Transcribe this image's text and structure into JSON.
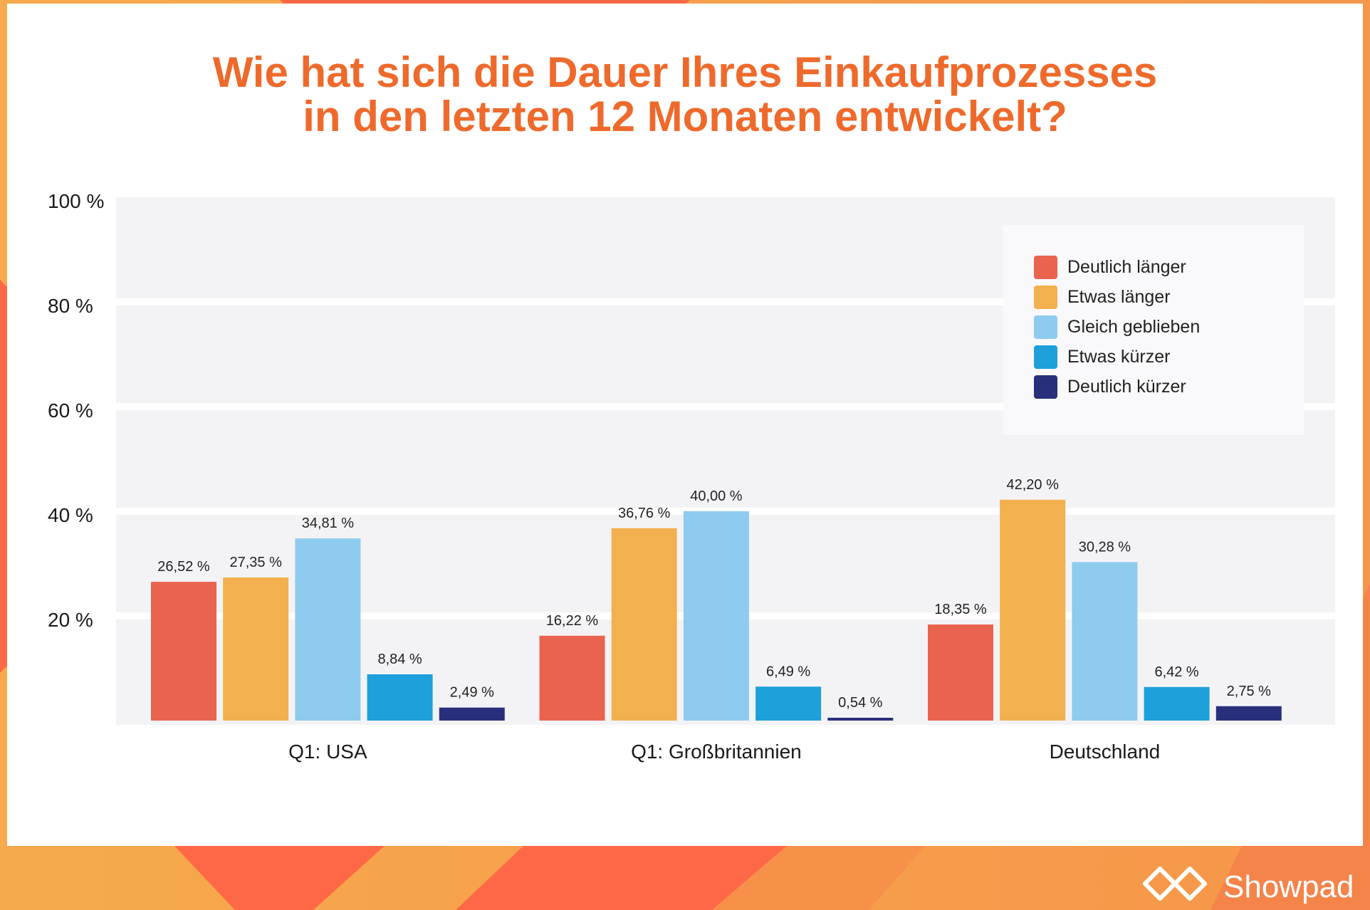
{
  "chart_data": {
    "type": "bar",
    "title": [
      "Wie hat sich die Dauer Ihres Einkaufprozesses",
      "in den letzten 12 Monaten entwickelt?"
    ],
    "categories": [
      "Q1: USA",
      "Q1: Großbritannien",
      "Deutschland"
    ],
    "series": [
      {
        "name": "Deutlich länger",
        "color": "#E9634E",
        "values": [
          26.52,
          16.22,
          18.35
        ],
        "labels": [
          "26,52 %",
          "16,22 %",
          "18,35 %"
        ]
      },
      {
        "name": "Etwas länger",
        "color": "#F2B04E",
        "values": [
          27.35,
          36.76,
          42.2
        ],
        "labels": [
          "27,35 %",
          "36,76 %",
          "42,20 %"
        ]
      },
      {
        "name": "Gleich geblieben",
        "color": "#8FCBEE",
        "values": [
          34.81,
          40.0,
          30.28
        ],
        "labels": [
          "34,81 %",
          "40,00 %",
          "30,28 %"
        ]
      },
      {
        "name": "Etwas kürzer",
        "color": "#1EA0DB",
        "values": [
          8.84,
          6.49,
          6.42
        ],
        "labels": [
          "8,84 %",
          "6,49 %",
          "6,42 %"
        ]
      },
      {
        "name": "Deutlich kürzer",
        "color": "#2A2F7B",
        "values": [
          2.49,
          0.54,
          2.75
        ],
        "labels": [
          "2,49 %",
          "0,54 %",
          "2,75 %"
        ]
      }
    ],
    "y_ticks": [
      {
        "value": 100,
        "label": "100 %"
      },
      {
        "value": 80,
        "label": "80 %"
      },
      {
        "value": 60,
        "label": "60 %"
      },
      {
        "value": 40,
        "label": "40 %"
      },
      {
        "value": 20,
        "label": "20 %"
      }
    ],
    "ylim": [
      0,
      100
    ],
    "grid": true,
    "legend": "top-right"
  },
  "theme": {
    "title_color": "#EE6A2C",
    "plot_background": "#F3F3F6"
  },
  "footer": {
    "brand": "Showpad",
    "logo_icon": "showpad-logo-icon"
  }
}
